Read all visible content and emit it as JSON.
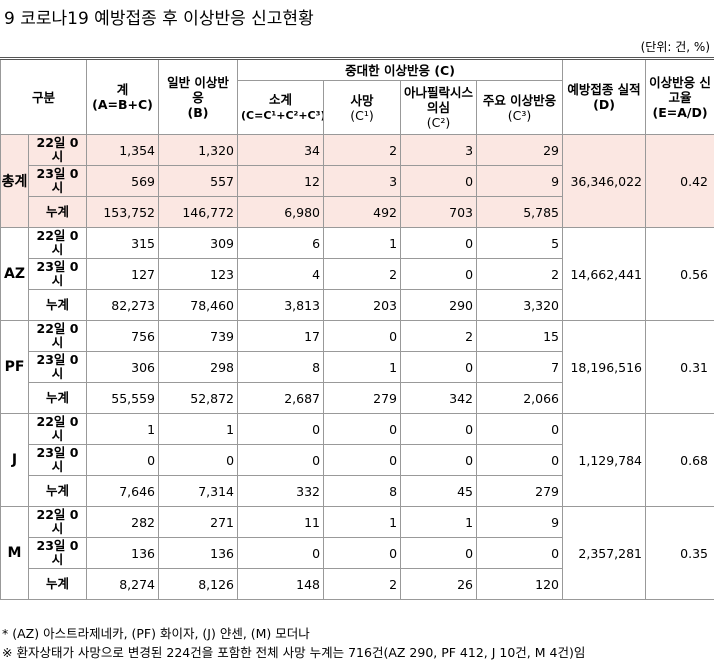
{
  "title": "9  코로나19 예방접종 후 이상반응 신고현황",
  "unit": "(단위: 건, %)",
  "header": {
    "category": "구분",
    "total": "계",
    "total_formula": "(A=B+C)",
    "general": "일반 이상반응",
    "general_code": "(B)",
    "serious": "중대한 이상반응 (C)",
    "subtotal": "소계",
    "subtotal_formula": "(C=C¹+C²+C³)",
    "death": "사망",
    "death_code": "(C¹)",
    "anaphylaxis": "아나필락시스 의심",
    "anaphylaxis_code": "(C²)",
    "major": "주요 이상반응",
    "major_code": "(C³)",
    "vaccinations": "예방접종 실적(D)",
    "rate": "이상반응 신고율",
    "rate_formula": "(E=A/D)"
  },
  "groups": [
    {
      "name": "총계",
      "vaccinations": "36,346,022",
      "rate": "0.42",
      "rows": [
        {
          "label": "22일 0시",
          "values": [
            "1,354",
            "1,320",
            "34",
            "2",
            "3",
            "29"
          ]
        },
        {
          "label": "23일 0시",
          "values": [
            "569",
            "557",
            "12",
            "3",
            "0",
            "9"
          ]
        },
        {
          "label": "누계",
          "values": [
            "153,752",
            "146,772",
            "6,980",
            "492",
            "703",
            "5,785"
          ]
        }
      ]
    },
    {
      "name": "AZ",
      "vaccinations": "14,662,441",
      "rate": "0.56",
      "rows": [
        {
          "label": "22일 0시",
          "values": [
            "315",
            "309",
            "6",
            "1",
            "0",
            "5"
          ]
        },
        {
          "label": "23일 0시",
          "values": [
            "127",
            "123",
            "4",
            "2",
            "0",
            "2"
          ]
        },
        {
          "label": "누계",
          "values": [
            "82,273",
            "78,460",
            "3,813",
            "203",
            "290",
            "3,320"
          ]
        }
      ]
    },
    {
      "name": "PF",
      "vaccinations": "18,196,516",
      "rate": "0.31",
      "rows": [
        {
          "label": "22일 0시",
          "values": [
            "756",
            "739",
            "17",
            "0",
            "2",
            "15"
          ]
        },
        {
          "label": "23일 0시",
          "values": [
            "306",
            "298",
            "8",
            "1",
            "0",
            "7"
          ]
        },
        {
          "label": "누계",
          "values": [
            "55,559",
            "52,872",
            "2,687",
            "279",
            "342",
            "2,066"
          ]
        }
      ]
    },
    {
      "name": "J",
      "vaccinations": "1,129,784",
      "rate": "0.68",
      "rows": [
        {
          "label": "22일 0시",
          "values": [
            "1",
            "1",
            "0",
            "0",
            "0",
            "0"
          ]
        },
        {
          "label": "23일 0시",
          "values": [
            "0",
            "0",
            "0",
            "0",
            "0",
            "0"
          ]
        },
        {
          "label": "누계",
          "values": [
            "7,646",
            "7,314",
            "332",
            "8",
            "45",
            "279"
          ]
        }
      ]
    },
    {
      "name": "M",
      "vaccinations": "2,357,281",
      "rate": "0.35",
      "rows": [
        {
          "label": "22일 0시",
          "values": [
            "282",
            "271",
            "11",
            "1",
            "1",
            "9"
          ]
        },
        {
          "label": "23일 0시",
          "values": [
            "136",
            "136",
            "0",
            "0",
            "0",
            "0"
          ]
        },
        {
          "label": "누계",
          "values": [
            "8,274",
            "8,126",
            "148",
            "2",
            "26",
            "120"
          ]
        }
      ]
    }
  ],
  "footnotes": [
    "* (AZ) 아스트라제네카, (PF) 화이자, (J) 얀센, (M) 모더나",
    "※ 환자상태가 사망으로 변경된 224건을 포함한 전체 사망 누계는 716건(AZ 290, PF 412, J 10건, M 4건)임"
  ]
}
